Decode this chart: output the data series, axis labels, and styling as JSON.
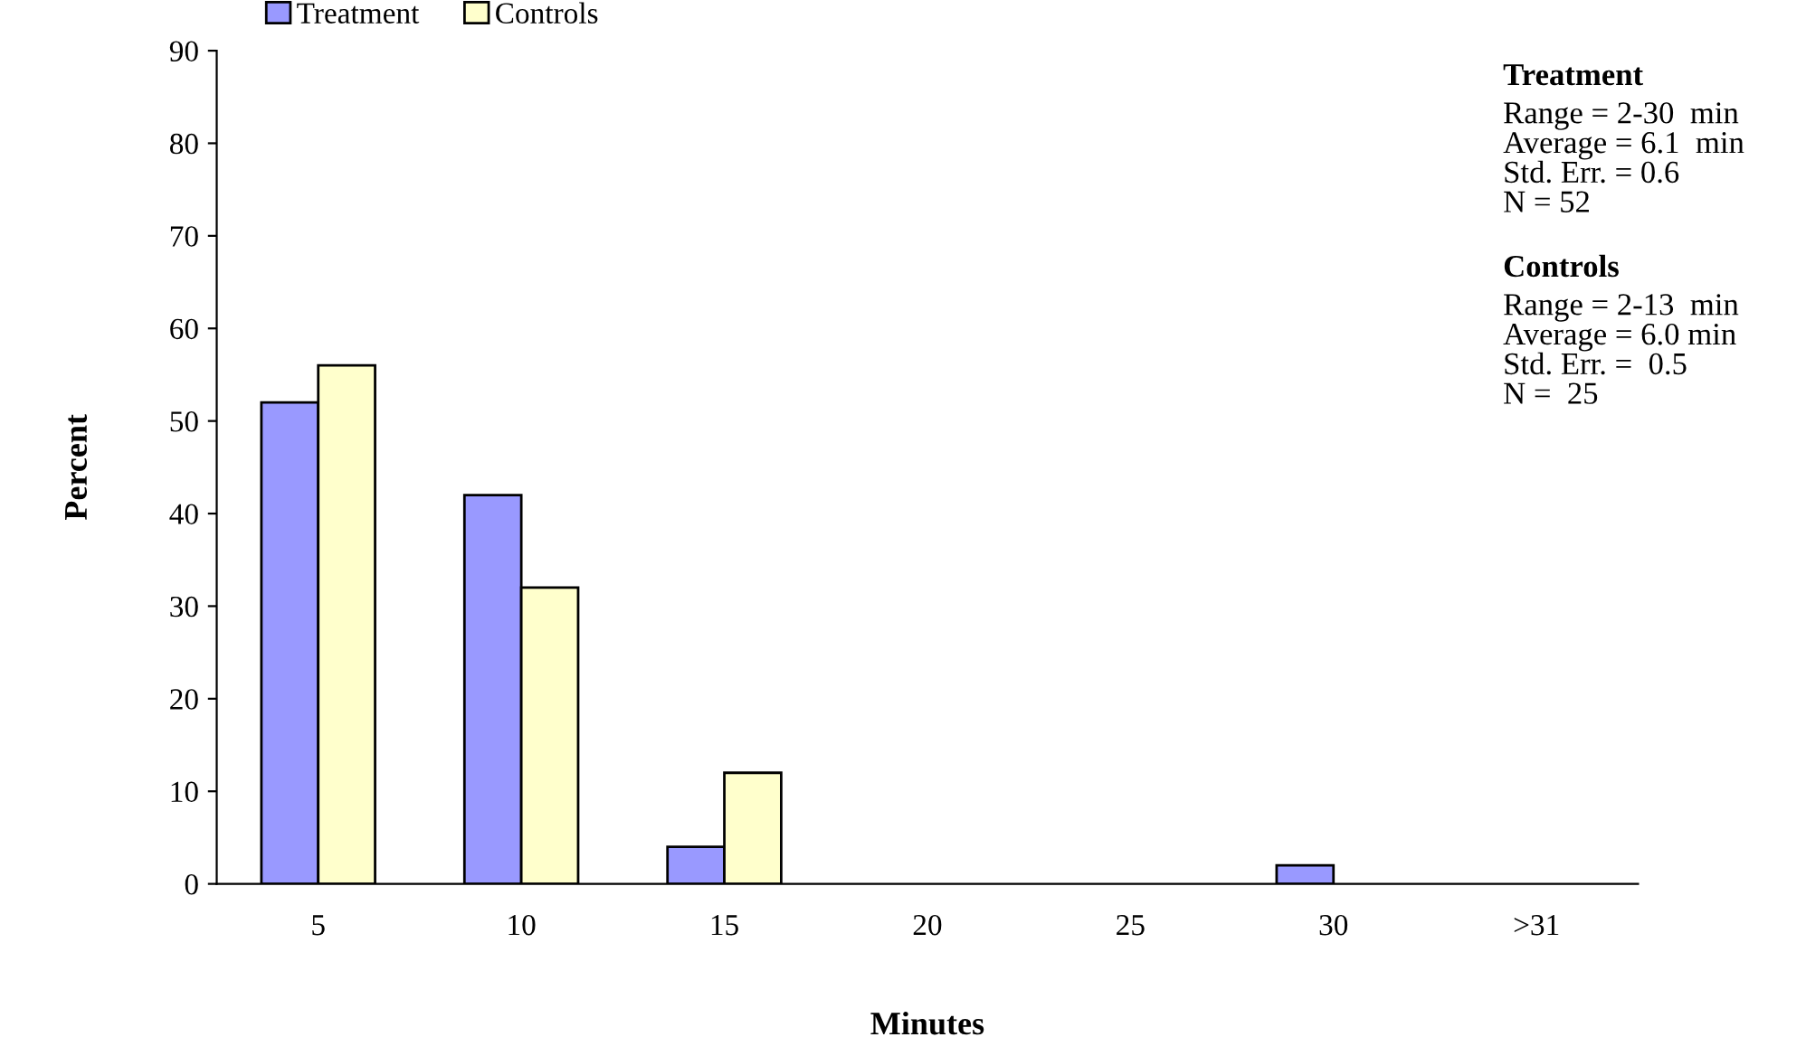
{
  "chart_data": {
    "type": "bar",
    "categories": [
      "5",
      "10",
      "15",
      "20",
      "25",
      "30",
      ">31"
    ],
    "series": [
      {
        "name": "Treatment",
        "color": "#9999ff",
        "values": [
          52,
          42,
          4,
          null,
          null,
          2,
          null
        ]
      },
      {
        "name": "Controls",
        "color": "#ffffcc",
        "values": [
          56,
          32,
          12,
          null,
          null,
          null,
          null
        ]
      }
    ],
    "xlabel": "Minutes",
    "ylabel": "Percent",
    "ylim": [
      0,
      90
    ],
    "yticks": [
      0,
      10,
      20,
      30,
      40,
      50,
      60,
      70,
      80,
      90
    ],
    "grid": false,
    "legend": "top left",
    "annotations": [
      "Treatment\nRange = 2-30  min\nAverage = 6.1  min\nStd. Err. = 0.6\nN = 52",
      "Controls\nRange = 2-13  min\nAverage = 6.0 min\nStd. Err. =  0.5\nN =  25"
    ]
  }
}
